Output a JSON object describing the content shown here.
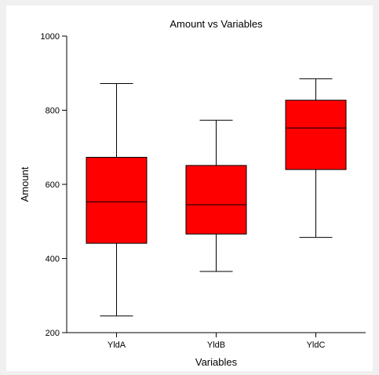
{
  "chart_data": {
    "type": "box",
    "title": "Amount vs Variables",
    "xlabel": "Variables",
    "ylabel": "Amount",
    "ylim": [
      200,
      1000
    ],
    "yticks": [
      200,
      400,
      600,
      800,
      1000
    ],
    "grid": false,
    "legend": "none",
    "box_color": "#ff0000",
    "categories": [
      "YldA",
      "YldB",
      "YldC"
    ],
    "boxes": [
      {
        "category": "YldA",
        "min": 245,
        "q1": 441,
        "median": 553,
        "q3": 673,
        "max": 872
      },
      {
        "category": "YldB",
        "min": 365,
        "q1": 466,
        "median": 545,
        "q3": 651,
        "max": 773
      },
      {
        "category": "YldC",
        "min": 457,
        "q1": 640,
        "median": 752,
        "q3": 827,
        "max": 885
      }
    ]
  }
}
